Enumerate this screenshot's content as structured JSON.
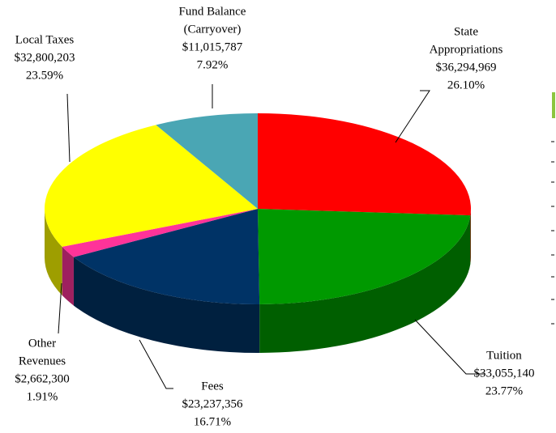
{
  "chart_data": {
    "type": "pie",
    "categories": [
      [
        "State",
        "Appropriations"
      ],
      [
        "Tuition"
      ],
      [
        "Fees"
      ],
      [
        "Other",
        "Revenues"
      ],
      [
        "Local Taxes"
      ],
      [
        "Fund Balance",
        "(Carryover)"
      ]
    ],
    "values": [
      36294969,
      33055140,
      23237356,
      2662300,
      32800203,
      11015787
    ],
    "value_labels": [
      "$36,294,969",
      "$33,055,140",
      "$23,237,356",
      "$2,662,300",
      "$32,800,203",
      "$11,015,787"
    ],
    "percents": [
      26.1,
      23.77,
      16.71,
      1.91,
      23.59,
      7.92
    ],
    "percent_labels": [
      "26.10%",
      "23.77%",
      "16.71%",
      "1.91%",
      "23.59%",
      "7.92%"
    ],
    "colors": [
      "#ff0000",
      "#009900",
      "#003366",
      "#ff3399",
      "#ffff00",
      "#4aa6b4"
    ]
  }
}
